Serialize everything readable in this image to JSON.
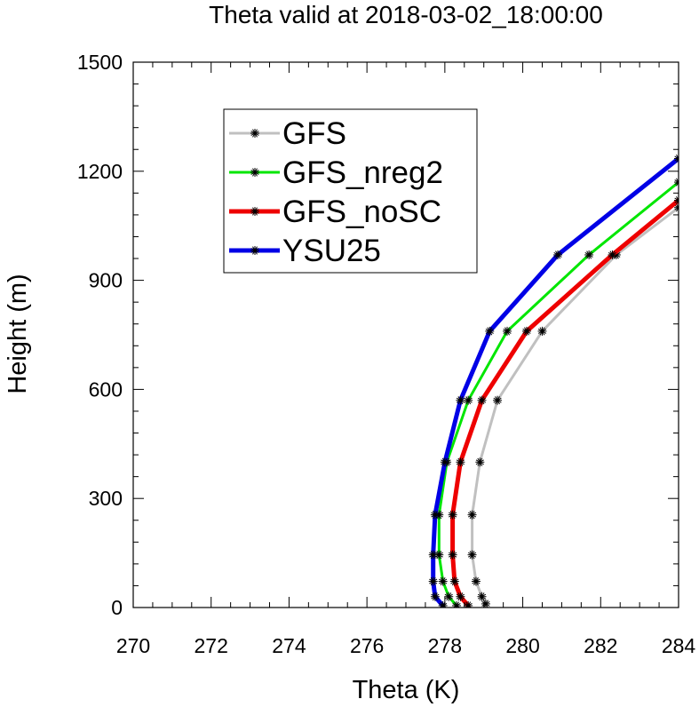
{
  "chart_data": {
    "type": "line",
    "title": "Theta valid at 2018-03-02_18:00:00",
    "xlabel": "Theta (K)",
    "ylabel": "Height (m)",
    "xlim": [
      270,
      284
    ],
    "ylim": [
      0,
      1500
    ],
    "xticks": [
      "270",
      "272",
      "274",
      "276",
      "278",
      "280",
      "282",
      "284"
    ],
    "yticks": [
      "0",
      "300",
      "600",
      "900",
      "1200",
      "1500"
    ],
    "grid": false,
    "legend_position": "upper-left",
    "series": [
      {
        "name": "GFS",
        "color": "#c0c0c0",
        "points": [
          [
            284.0,
            1100
          ],
          [
            282.4,
            970
          ],
          [
            280.5,
            760
          ],
          [
            279.35,
            570
          ],
          [
            278.9,
            400
          ],
          [
            278.7,
            255
          ],
          [
            278.7,
            145
          ],
          [
            278.8,
            72
          ],
          [
            278.95,
            30
          ],
          [
            279.05,
            10
          ]
        ]
      },
      {
        "name": "GFS_nreg2",
        "color": "#00e600",
        "points": [
          [
            284.0,
            1170
          ],
          [
            281.7,
            970
          ],
          [
            279.6,
            760
          ],
          [
            278.6,
            570
          ],
          [
            278.05,
            400
          ],
          [
            277.85,
            255
          ],
          [
            277.85,
            145
          ],
          [
            277.95,
            72
          ],
          [
            278.1,
            30
          ],
          [
            278.3,
            5
          ]
        ]
      },
      {
        "name": "GFS_noSC",
        "color": "#ee0000",
        "points": [
          [
            284.0,
            1120
          ],
          [
            282.3,
            970
          ],
          [
            280.1,
            760
          ],
          [
            278.95,
            570
          ],
          [
            278.4,
            400
          ],
          [
            278.2,
            255
          ],
          [
            278.2,
            145
          ],
          [
            278.25,
            72
          ],
          [
            278.4,
            30
          ],
          [
            278.6,
            5
          ]
        ]
      },
      {
        "name": "YSU25",
        "color": "#0000e6",
        "points": [
          [
            284.0,
            1235
          ],
          [
            280.9,
            970
          ],
          [
            279.15,
            760
          ],
          [
            278.4,
            570
          ],
          [
            278.0,
            400
          ],
          [
            277.75,
            255
          ],
          [
            277.7,
            145
          ],
          [
            277.7,
            72
          ],
          [
            277.75,
            30
          ],
          [
            277.95,
            5
          ]
        ]
      }
    ]
  }
}
